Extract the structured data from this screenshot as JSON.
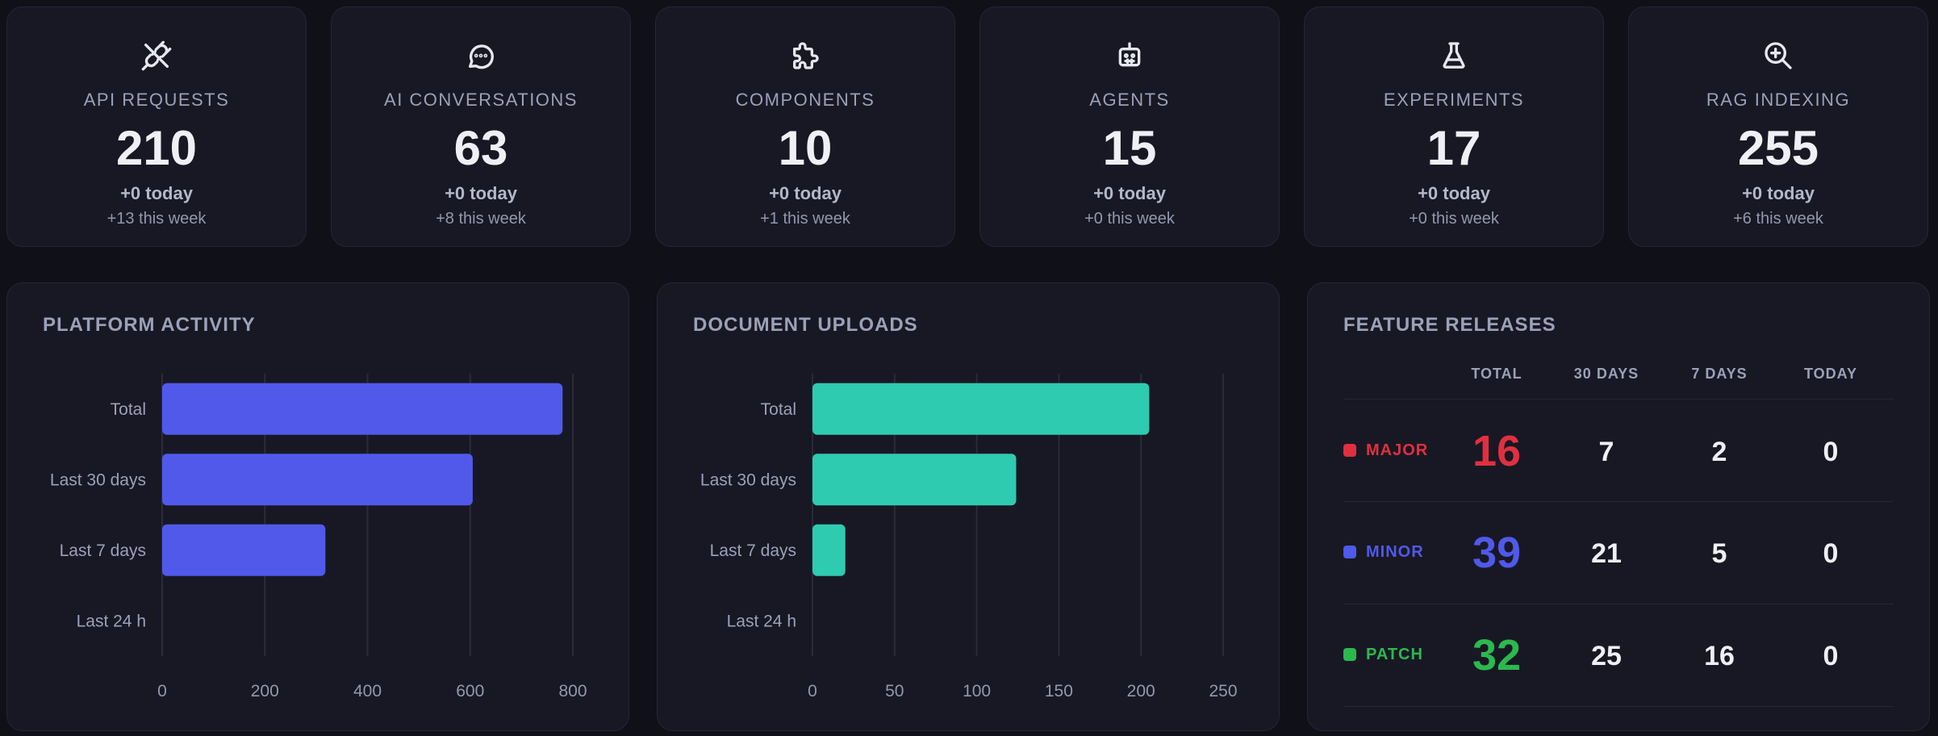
{
  "stats": [
    {
      "label": "API REQUESTS",
      "value": "210",
      "today": "+0 today",
      "week": "+13 this week",
      "icon": "plug-off-icon"
    },
    {
      "label": "AI CONVERSATIONS",
      "value": "63",
      "today": "+0 today",
      "week": "+8 this week",
      "icon": "chat-bubble-icon"
    },
    {
      "label": "COMPONENTS",
      "value": "10",
      "today": "+0 today",
      "week": "+1 this week",
      "icon": "puzzle-icon"
    },
    {
      "label": "AGENTS",
      "value": "15",
      "today": "+0 today",
      "week": "+0 this week",
      "icon": "robot-icon"
    },
    {
      "label": "EXPERIMENTS",
      "value": "17",
      "today": "+0 today",
      "week": "+0 this week",
      "icon": "flask-icon"
    },
    {
      "label": "RAG INDEXING",
      "value": "255",
      "today": "+0 today",
      "week": "+6 this week",
      "icon": "zoom-in-icon"
    }
  ],
  "panels": {
    "activity_title": "PLATFORM ACTIVITY",
    "uploads_title": "DOCUMENT UPLOADS",
    "releases_title": "FEATURE RELEASES"
  },
  "chart_data": [
    {
      "type": "bar",
      "orientation": "horizontal",
      "title": "PLATFORM ACTIVITY",
      "categories": [
        "Total",
        "Last 30 days",
        "Last 7 days",
        "Last 24 h"
      ],
      "values": [
        780,
        605,
        318,
        0
      ],
      "xlim": [
        0,
        800
      ],
      "xticks": [
        "0",
        "200",
        "400",
        "600",
        "800"
      ],
      "grid": true,
      "color": "#5059ea"
    },
    {
      "type": "bar",
      "orientation": "horizontal",
      "title": "DOCUMENT UPLOADS",
      "categories": [
        "Total",
        "Last 30 days",
        "Last 7 days",
        "Last 24 h"
      ],
      "values": [
        205,
        124,
        20,
        0
      ],
      "xlim": [
        0,
        250
      ],
      "xticks": [
        "0",
        "50",
        "100",
        "150",
        "200",
        "250"
      ],
      "grid": true,
      "color": "#2ecbb0"
    }
  ],
  "releases": {
    "columns": [
      "TOTAL",
      "30 DAYS",
      "7 DAYS",
      "TODAY"
    ],
    "rows": [
      {
        "name": "MAJOR",
        "total": "16",
        "d30": "7",
        "d7": "2",
        "today": "0",
        "color": "#e0303f"
      },
      {
        "name": "MINOR",
        "total": "39",
        "d30": "21",
        "d7": "5",
        "today": "0",
        "color": "#5059ea"
      },
      {
        "name": "PATCH",
        "total": "32",
        "d30": "25",
        "d7": "16",
        "today": "0",
        "color": "#2bb94e"
      }
    ]
  }
}
